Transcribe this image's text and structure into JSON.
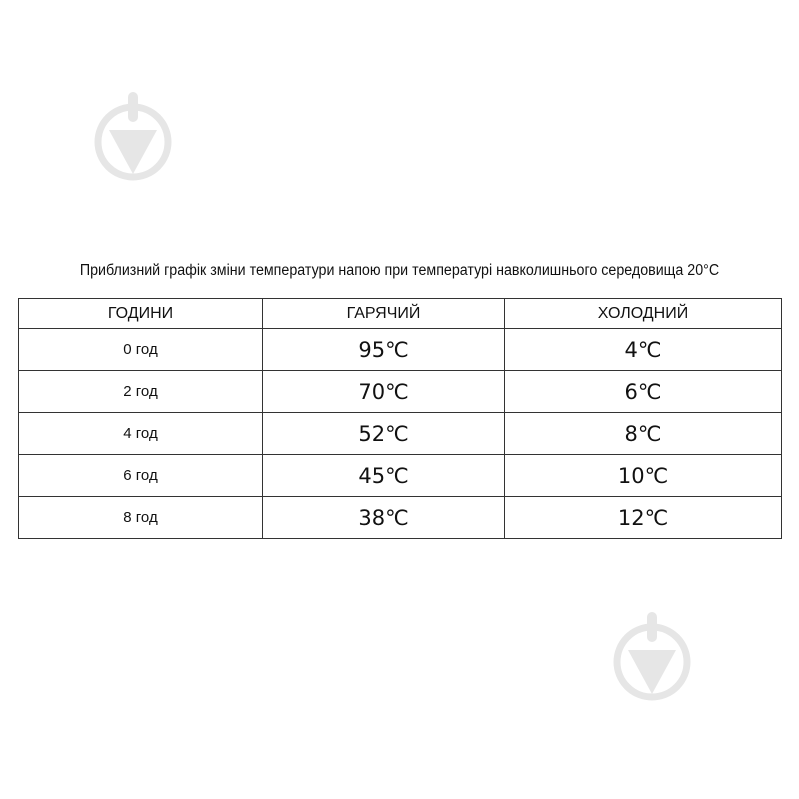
{
  "title": "Приблизний графік зміни температури напою при температурі навколишнього середовища 20°C",
  "table": {
    "headers": [
      "ГОДИНИ",
      "ГАРЯЧИЙ",
      "ХОЛОДНИЙ"
    ],
    "rows": [
      [
        "0 год",
        "95℃",
        "4℃"
      ],
      [
        "2 год",
        "70℃",
        "6℃"
      ],
      [
        "4 год",
        "52℃",
        "8℃"
      ],
      [
        "6 год",
        "45℃",
        "10℃"
      ],
      [
        "8 год",
        "38℃",
        "12℃"
      ]
    ]
  },
  "watermark_icon": "download-arrow-circle-icon",
  "watermark_color": "#e6e6e6"
}
